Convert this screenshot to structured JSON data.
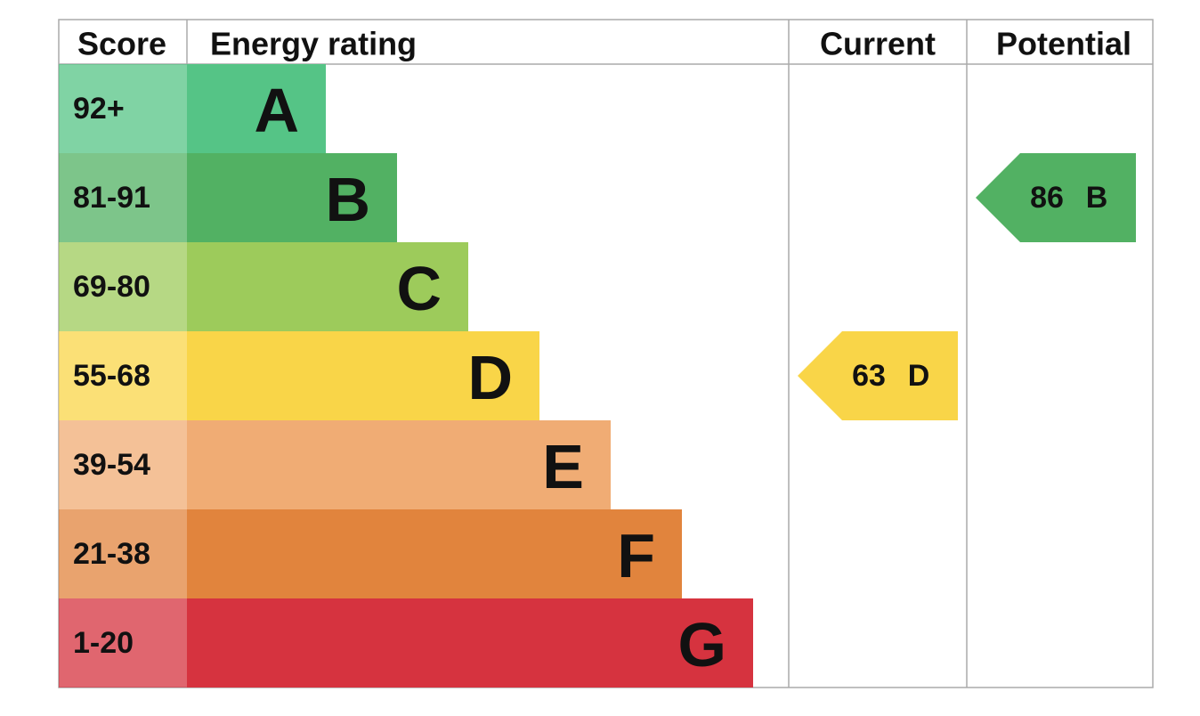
{
  "header": {
    "score": "Score",
    "rating": "Energy rating",
    "current": "Current",
    "potential": "Potential"
  },
  "bands": [
    {
      "score": "92+",
      "letter": "A",
      "color": "#55c486"
    },
    {
      "score": "81-91",
      "letter": "B",
      "color": "#52b163"
    },
    {
      "score": "69-80",
      "letter": "C",
      "color": "#9dcb5b"
    },
    {
      "score": "55-68",
      "letter": "D",
      "color": "#f9d548"
    },
    {
      "score": "39-54",
      "letter": "E",
      "color": "#f0ac74"
    },
    {
      "score": "21-38",
      "letter": "F",
      "color": "#e1843d"
    },
    {
      "score": "1-20",
      "letter": "G",
      "color": "#d6333f"
    }
  ],
  "current": {
    "value": 63,
    "rating": "D"
  },
  "potential": {
    "value": 86,
    "rating": "B"
  }
}
